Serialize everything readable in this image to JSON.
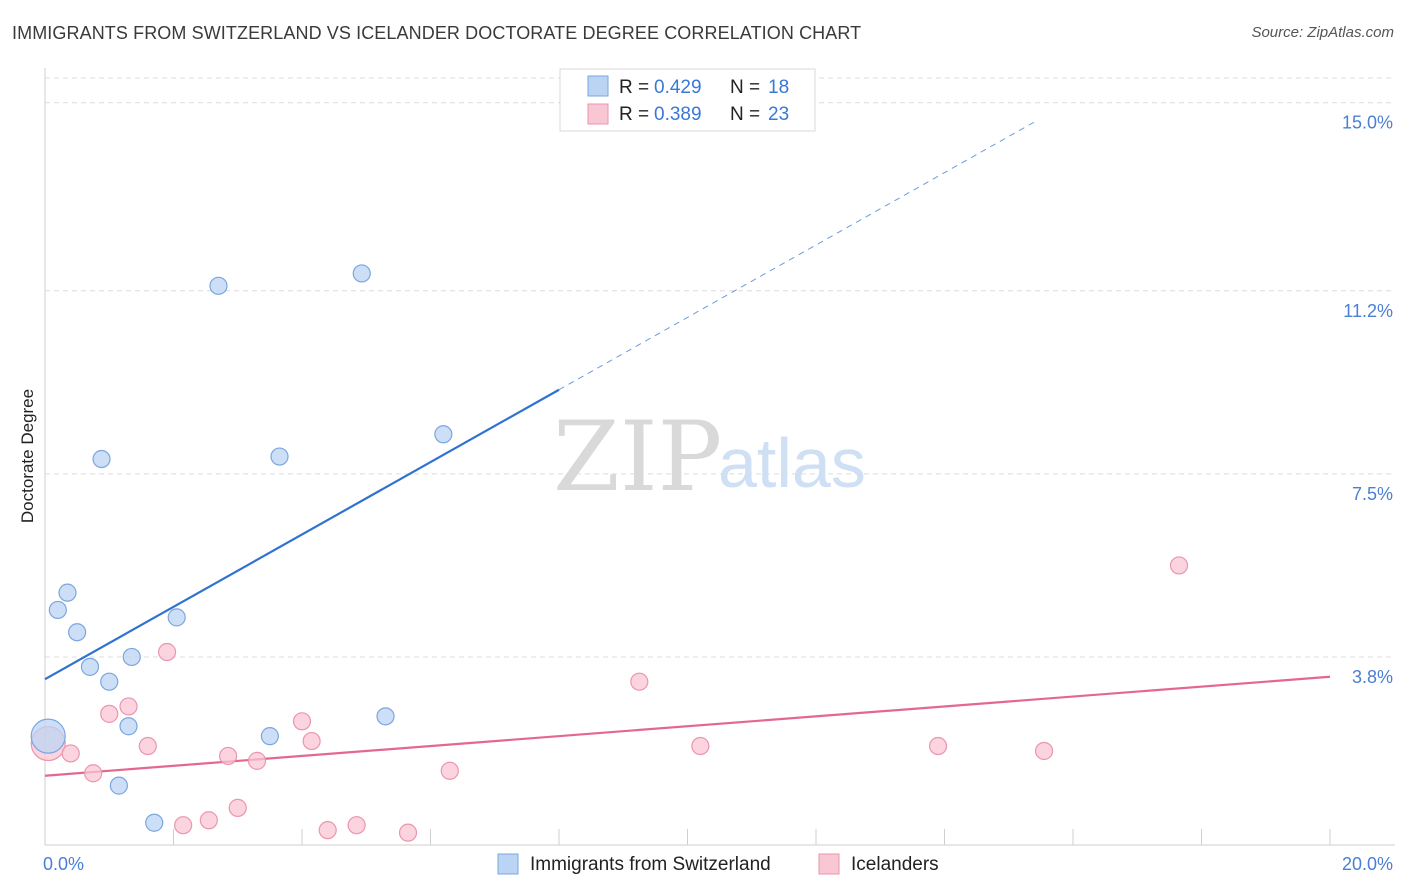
{
  "header": {
    "title": "IMMIGRANTS FROM SWITZERLAND VS ICELANDER DOCTORATE DEGREE CORRELATION CHART",
    "source": "Source: ZipAtlas.com"
  },
  "watermark": {
    "zip": "ZIP",
    "atlas": "atlas"
  },
  "chart_data": {
    "type": "scatter",
    "title": "IMMIGRANTS FROM SWITZERLAND VS ICELANDER DOCTORATE DEGREE CORRELATION CHART",
    "xlabel": "",
    "ylabel": "Doctorate Degree",
    "xlim": [
      0,
      20
    ],
    "ylim": [
      0,
      15.5
    ],
    "x_tick_labels": [
      "0.0%",
      "20.0%"
    ],
    "y_ticks": [
      3.8,
      7.5,
      11.2,
      15.0
    ],
    "y_tick_labels": [
      "3.8%",
      "7.5%",
      "11.2%",
      "15.0%"
    ],
    "grid": true,
    "colors": {
      "series1_fill": "#bcd4f3",
      "series1_stroke": "#7aa6e0",
      "series1_line": "#2f72d2",
      "series2_fill": "#f9c6d4",
      "series2_stroke": "#eb95ae",
      "series2_line": "#e3678f",
      "tick": "#4a7fd4"
    },
    "legend": {
      "r_label": "R =",
      "n_label": "N =",
      "entries": [
        {
          "r": "0.429",
          "n": "18"
        },
        {
          "r": "0.389",
          "n": "23"
        }
      ]
    },
    "series": [
      {
        "name": "Immigrants from Switzerland",
        "trend": {
          "x0": 0,
          "y0": 3.35,
          "x1": 8.0,
          "y1": 9.2,
          "x_dash_end": 15.4
        },
        "points": [
          {
            "x": 0.05,
            "y": 2.2,
            "big": true
          },
          {
            "x": 0.2,
            "y": 4.75
          },
          {
            "x": 0.35,
            "y": 5.1
          },
          {
            "x": 0.5,
            "y": 4.3
          },
          {
            "x": 0.7,
            "y": 3.6
          },
          {
            "x": 0.88,
            "y": 7.8
          },
          {
            "x": 1.0,
            "y": 3.3
          },
          {
            "x": 1.15,
            "y": 1.2
          },
          {
            "x": 1.3,
            "y": 2.4
          },
          {
            "x": 1.35,
            "y": 3.8
          },
          {
            "x": 1.7,
            "y": 0.45
          },
          {
            "x": 2.05,
            "y": 4.6
          },
          {
            "x": 2.7,
            "y": 11.3
          },
          {
            "x": 3.5,
            "y": 2.2
          },
          {
            "x": 3.65,
            "y": 7.85
          },
          {
            "x": 4.93,
            "y": 11.55
          },
          {
            "x": 5.3,
            "y": 2.6
          },
          {
            "x": 6.2,
            "y": 8.3
          }
        ]
      },
      {
        "name": "Icelanders",
        "trend": {
          "x0": 0,
          "y0": 1.4,
          "x1": 20,
          "y1": 3.4
        },
        "points": [
          {
            "x": 0.05,
            "y": 2.05,
            "big": true
          },
          {
            "x": 0.4,
            "y": 1.85
          },
          {
            "x": 0.75,
            "y": 1.45
          },
          {
            "x": 1.0,
            "y": 2.65
          },
          {
            "x": 1.3,
            "y": 2.8
          },
          {
            "x": 1.6,
            "y": 2.0
          },
          {
            "x": 1.9,
            "y": 3.9
          },
          {
            "x": 2.15,
            "y": 0.4
          },
          {
            "x": 2.55,
            "y": 0.5
          },
          {
            "x": 2.85,
            "y": 1.8
          },
          {
            "x": 3.0,
            "y": 0.75
          },
          {
            "x": 3.3,
            "y": 1.7
          },
          {
            "x": 4.0,
            "y": 2.5
          },
          {
            "x": 4.15,
            "y": 2.1
          },
          {
            "x": 4.4,
            "y": 0.3
          },
          {
            "x": 4.85,
            "y": 0.4
          },
          {
            "x": 5.65,
            "y": 0.25
          },
          {
            "x": 6.3,
            "y": 1.5
          },
          {
            "x": 9.25,
            "y": 3.3
          },
          {
            "x": 10.2,
            "y": 2.0
          },
          {
            "x": 13.9,
            "y": 2.0
          },
          {
            "x": 15.55,
            "y": 1.9
          },
          {
            "x": 17.65,
            "y": 5.65
          }
        ]
      }
    ]
  }
}
